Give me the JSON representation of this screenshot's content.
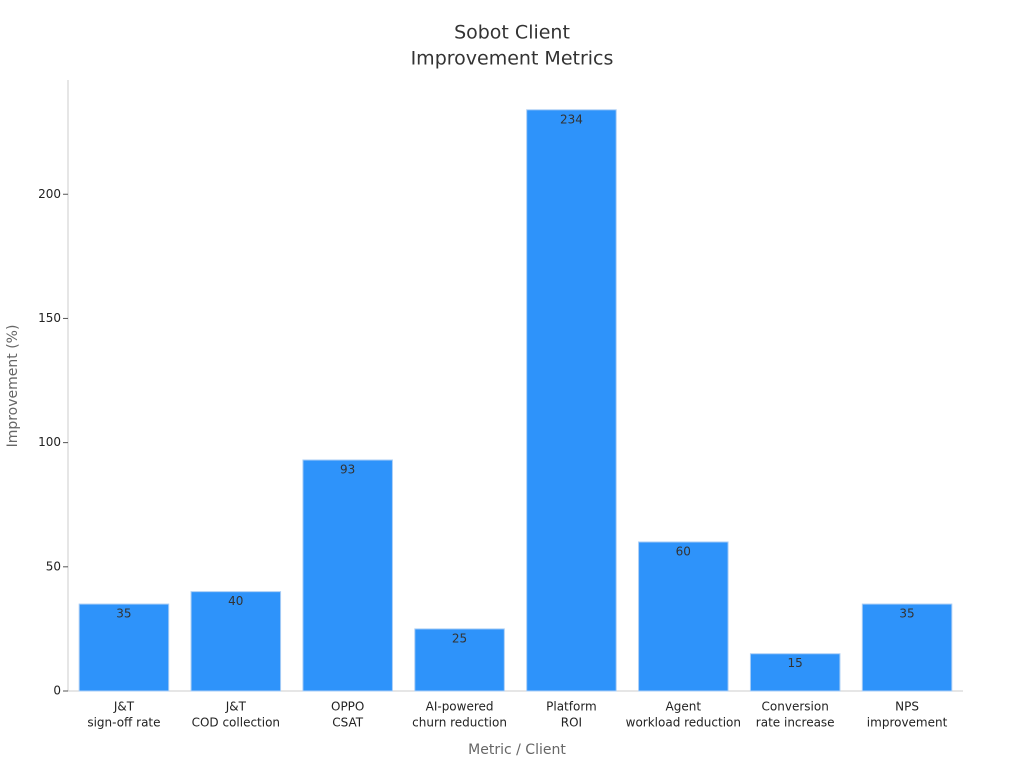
{
  "chart_data": {
    "type": "bar",
    "title": [
      "Sobot Client",
      "Improvement Metrics"
    ],
    "categories": [
      [
        "J&T",
        "sign-off rate"
      ],
      [
        "J&T",
        "COD collection"
      ],
      [
        "OPPO",
        "CSAT"
      ],
      [
        "AI-powered",
        "churn reduction"
      ],
      [
        "Platform",
        "ROI"
      ],
      [
        "Agent",
        "workload reduction"
      ],
      [
        "Conversion",
        "rate increase"
      ],
      [
        "NPS",
        "improvement"
      ]
    ],
    "values": [
      35,
      40,
      93,
      25,
      234,
      60,
      15,
      35
    ],
    "color": "#2e93fa",
    "xlabel": "Metric / Client",
    "ylabel": "Improvement (%)",
    "ylim": [
      0,
      246
    ],
    "yticks": [
      0,
      50,
      100,
      150,
      200
    ],
    "grid": false
  }
}
